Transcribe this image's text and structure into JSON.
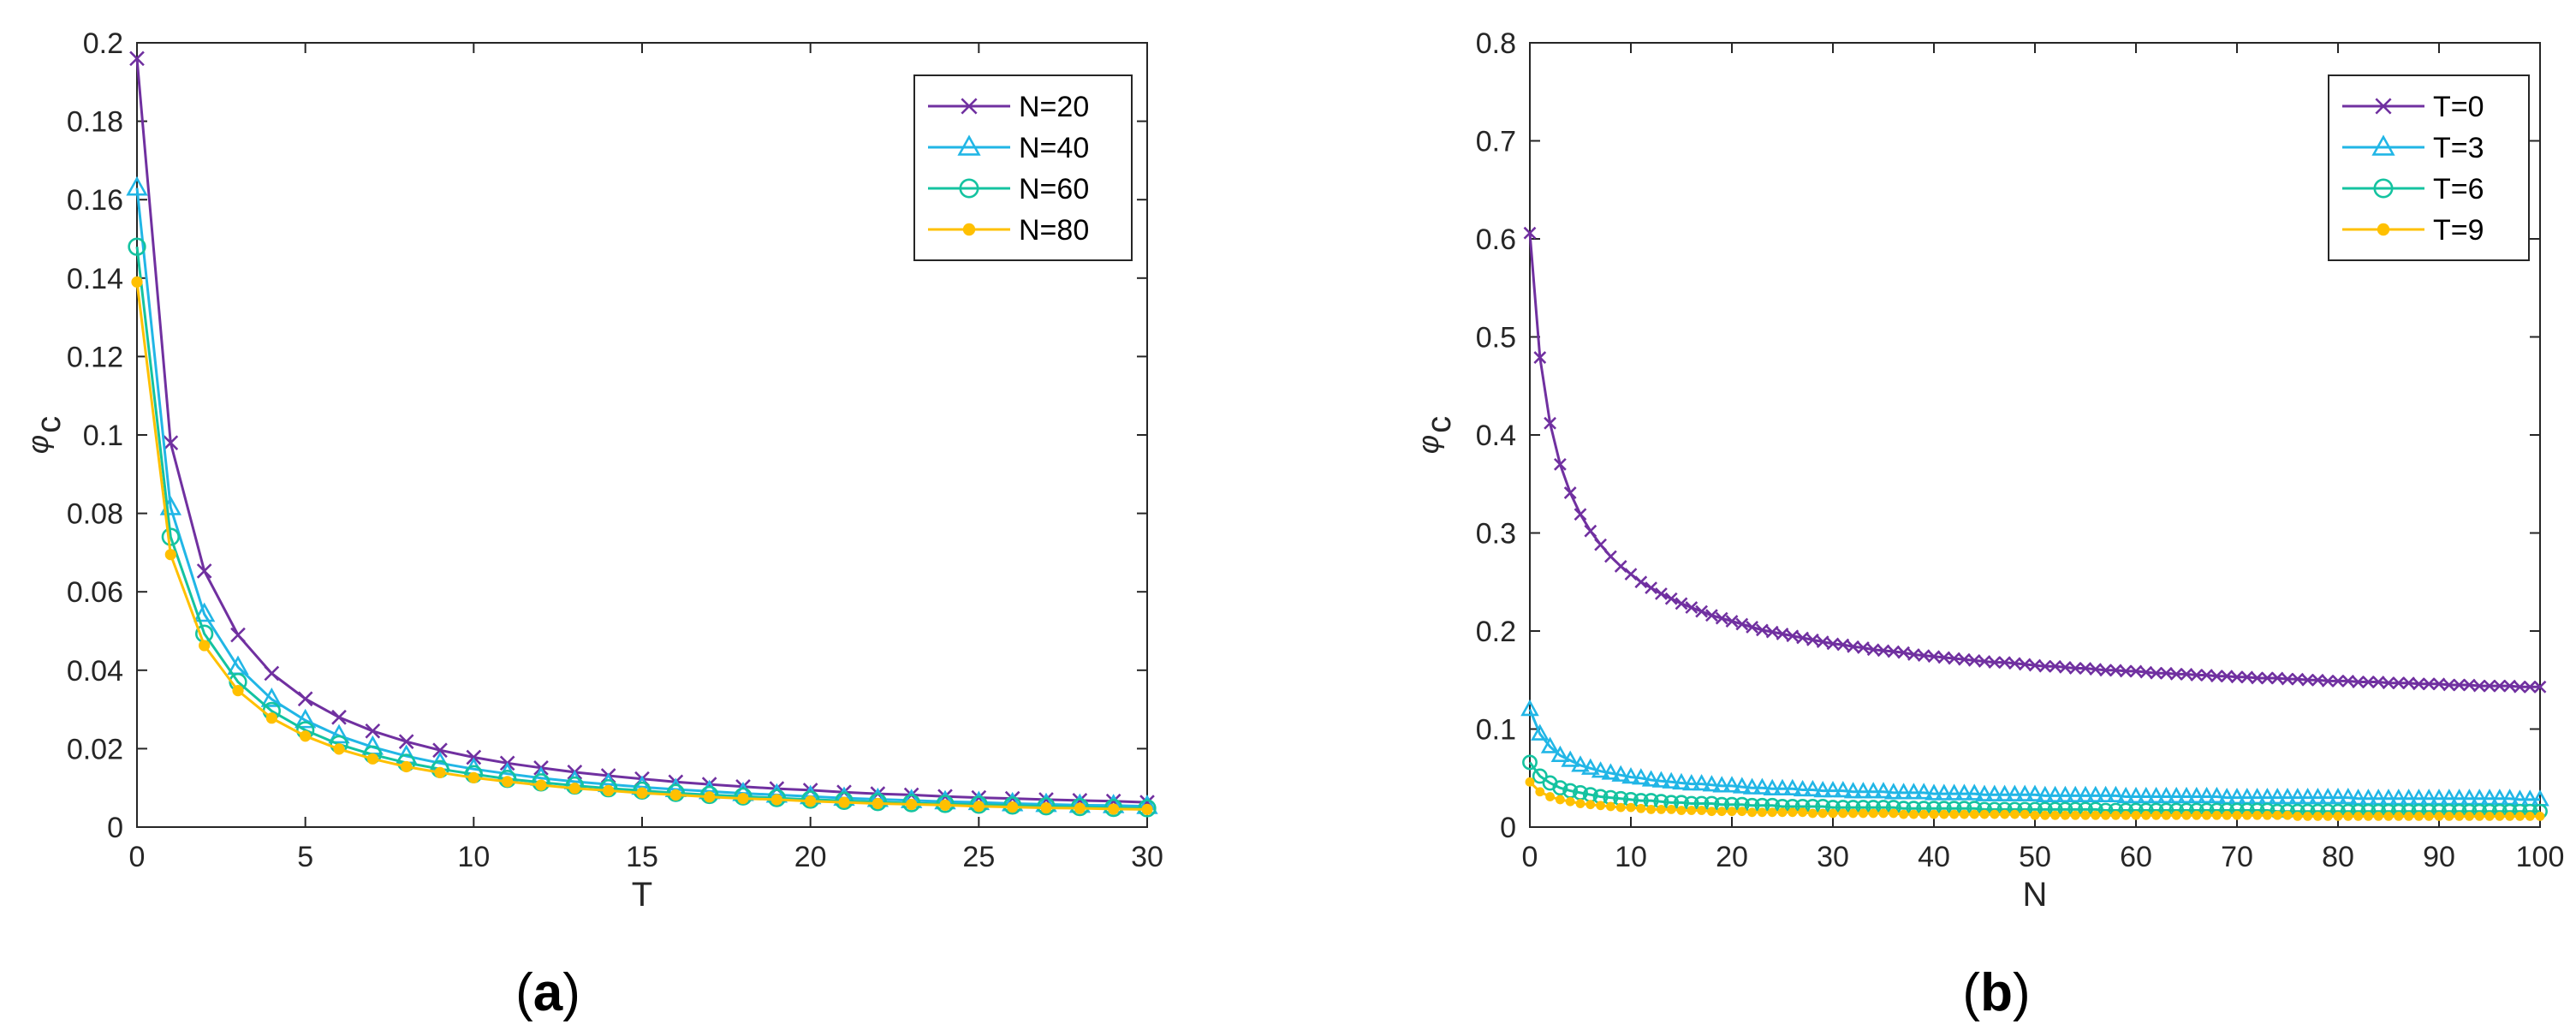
{
  "colors": {
    "purple": "#7030a0",
    "cyan": "#21b6e6",
    "teal": "#14c3a0",
    "yellow": "#ffc000",
    "axis": "#262626",
    "legend_border": "#262626"
  },
  "panels": [
    {
      "open": "(",
      "letter": "a",
      "close": ")"
    },
    {
      "open": "(",
      "letter": "b",
      "close": ")"
    }
  ],
  "chart_data": [
    {
      "type": "line",
      "xlabel": "T",
      "ylabel_symbol": "φ",
      "ylabel_subscript": "c",
      "xlim": [
        0,
        30
      ],
      "ylim": [
        0,
        0.2
      ],
      "xticks": [
        "0",
        "5",
        "10",
        "15",
        "20",
        "25",
        "30"
      ],
      "xtick_values": [
        0,
        5,
        10,
        15,
        20,
        25,
        30
      ],
      "yticks": [
        "0",
        "0.02",
        "0.04",
        "0.06",
        "0.08",
        "0.1",
        "0.12",
        "0.14",
        "0.16",
        "0.18",
        "0.2"
      ],
      "ytick_values": [
        0,
        0.02,
        0.04,
        0.06,
        0.08,
        0.1,
        0.12,
        0.14,
        0.16,
        0.18,
        0.2
      ],
      "grid": false,
      "legend_position": "top-right",
      "x": [
        0,
        1,
        2,
        3,
        4,
        5,
        6,
        7,
        8,
        9,
        10,
        11,
        12,
        13,
        14,
        15,
        16,
        17,
        18,
        19,
        20,
        21,
        22,
        23,
        24,
        25,
        26,
        27,
        28,
        29,
        30
      ],
      "series": [
        {
          "name": "N=20",
          "marker": "x",
          "color": "purple",
          "values": [
            0.196,
            0.098,
            0.0653,
            0.049,
            0.0392,
            0.0327,
            0.028,
            0.0245,
            0.0218,
            0.0196,
            0.0178,
            0.0163,
            0.0151,
            0.014,
            0.0131,
            0.0123,
            0.0115,
            0.0109,
            0.0103,
            0.0098,
            0.0094,
            0.0089,
            0.0085,
            0.0082,
            0.0078,
            0.0075,
            0.0073,
            0.007,
            0.0068,
            0.0066,
            0.0063
          ]
        },
        {
          "name": "N=40",
          "marker": "triangle",
          "color": "cyan",
          "values": [
            0.163,
            0.0815,
            0.0543,
            0.0408,
            0.0326,
            0.0272,
            0.0233,
            0.0204,
            0.0181,
            0.0163,
            0.0148,
            0.0136,
            0.0125,
            0.0116,
            0.0109,
            0.0102,
            0.0096,
            0.0091,
            0.0086,
            0.0082,
            0.0078,
            0.0074,
            0.0071,
            0.0068,
            0.0065,
            0.0063,
            0.006,
            0.0058,
            0.0056,
            0.0055,
            0.0053
          ]
        },
        {
          "name": "N=60",
          "marker": "circle",
          "color": "teal",
          "values": [
            0.148,
            0.074,
            0.0493,
            0.037,
            0.0296,
            0.0247,
            0.0211,
            0.0185,
            0.0164,
            0.0148,
            0.0135,
            0.0123,
            0.0114,
            0.0106,
            0.0099,
            0.0093,
            0.0087,
            0.0082,
            0.0078,
            0.0074,
            0.007,
            0.0067,
            0.0064,
            0.0061,
            0.0059,
            0.0057,
            0.0055,
            0.0053,
            0.0051,
            0.0049,
            0.0048
          ]
        },
        {
          "name": "N=80",
          "marker": "dot",
          "color": "yellow",
          "values": [
            0.139,
            0.0695,
            0.0463,
            0.0348,
            0.0278,
            0.0232,
            0.0199,
            0.0174,
            0.0154,
            0.0139,
            0.0126,
            0.0116,
            0.0107,
            0.0099,
            0.0093,
            0.0087,
            0.0082,
            0.0077,
            0.0073,
            0.007,
            0.0066,
            0.0063,
            0.006,
            0.0058,
            0.0056,
            0.0053,
            0.0051,
            0.0049,
            0.0048,
            0.0046,
            0.0045
          ]
        }
      ]
    },
    {
      "type": "line",
      "xlabel": "N",
      "ylabel_symbol": "φ",
      "ylabel_subscript": "c",
      "xlim": [
        0,
        100
      ],
      "ylim": [
        0,
        0.8
      ],
      "xticks": [
        "0",
        "10",
        "20",
        "30",
        "40",
        "50",
        "60",
        "70",
        "80",
        "90",
        "100"
      ],
      "xtick_values": [
        0,
        10,
        20,
        30,
        40,
        50,
        60,
        70,
        80,
        90,
        100
      ],
      "yticks": [
        "0",
        "0.1",
        "0.2",
        "0.3",
        "0.4",
        "0.5",
        "0.6",
        "0.7",
        "0.8"
      ],
      "ytick_values": [
        0,
        0.1,
        0.2,
        0.3,
        0.4,
        0.5,
        0.6,
        0.7,
        0.8
      ],
      "grid": false,
      "legend_position": "top-right",
      "x": [
        0,
        1,
        2,
        3,
        4,
        5,
        6,
        7,
        8,
        9,
        10,
        11,
        12,
        13,
        14,
        15,
        16,
        17,
        18,
        19,
        20,
        21,
        22,
        23,
        24,
        25,
        26,
        27,
        28,
        29,
        30,
        31,
        32,
        33,
        34,
        35,
        36,
        37,
        38,
        39,
        40,
        41,
        42,
        43,
        44,
        45,
        46,
        47,
        48,
        49,
        50,
        51,
        52,
        53,
        54,
        55,
        56,
        57,
        58,
        59,
        60,
        61,
        62,
        63,
        64,
        65,
        66,
        67,
        68,
        69,
        70,
        71,
        72,
        73,
        74,
        75,
        76,
        77,
        78,
        79,
        80,
        81,
        82,
        83,
        84,
        85,
        86,
        87,
        88,
        89,
        90,
        91,
        92,
        93,
        94,
        95,
        96,
        97,
        98,
        99,
        100
      ],
      "series": [
        {
          "name": "T=0",
          "marker": "x",
          "color": "purple",
          "values": [
            0.606,
            0.479,
            0.412,
            0.37,
            0.341,
            0.319,
            0.302,
            0.288,
            0.276,
            0.266,
            0.258,
            0.25,
            0.244,
            0.238,
            0.233,
            0.228,
            0.224,
            0.22,
            0.216,
            0.213,
            0.21,
            0.207,
            0.204,
            0.201,
            0.199,
            0.197,
            0.195,
            0.193,
            0.191,
            0.189,
            0.187,
            0.186,
            0.184,
            0.183,
            0.181,
            0.18,
            0.179,
            0.178,
            0.176,
            0.175,
            0.174,
            0.173,
            0.172,
            0.171,
            0.17,
            0.169,
            0.168,
            0.168,
            0.167,
            0.166,
            0.165,
            0.164,
            0.164,
            0.163,
            0.162,
            0.162,
            0.161,
            0.16,
            0.16,
            0.159,
            0.159,
            0.158,
            0.157,
            0.157,
            0.156,
            0.156,
            0.155,
            0.155,
            0.154,
            0.154,
            0.153,
            0.153,
            0.152,
            0.152,
            0.152,
            0.151,
            0.151,
            0.15,
            0.15,
            0.149,
            0.149,
            0.149,
            0.148,
            0.148,
            0.148,
            0.147,
            0.147,
            0.147,
            0.146,
            0.146,
            0.146,
            0.145,
            0.145,
            0.145,
            0.144,
            0.144,
            0.144,
            0.144,
            0.143,
            0.143,
            0.143
          ]
        },
        {
          "name": "T=3",
          "marker": "triangle",
          "color": "cyan",
          "values": [
            0.12,
            0.095,
            0.082,
            0.073,
            0.068,
            0.063,
            0.06,
            0.057,
            0.055,
            0.053,
            0.051,
            0.05,
            0.048,
            0.047,
            0.046,
            0.045,
            0.044,
            0.044,
            0.043,
            0.042,
            0.042,
            0.041,
            0.04,
            0.04,
            0.039,
            0.039,
            0.039,
            0.038,
            0.038,
            0.037,
            0.037,
            0.037,
            0.036,
            0.036,
            0.036,
            0.036,
            0.035,
            0.035,
            0.035,
            0.035,
            0.034,
            0.034,
            0.034,
            0.034,
            0.034,
            0.033,
            0.033,
            0.033,
            0.033,
            0.033,
            0.033,
            0.032,
            0.032,
            0.032,
            0.032,
            0.032,
            0.032,
            0.032,
            0.032,
            0.031,
            0.031,
            0.031,
            0.031,
            0.031,
            0.031,
            0.031,
            0.031,
            0.031,
            0.031,
            0.03,
            0.03,
            0.03,
            0.03,
            0.03,
            0.03,
            0.03,
            0.03,
            0.03,
            0.03,
            0.03,
            0.03,
            0.03,
            0.029,
            0.029,
            0.029,
            0.029,
            0.029,
            0.029,
            0.029,
            0.029,
            0.029,
            0.029,
            0.029,
            0.029,
            0.029,
            0.029,
            0.029,
            0.029,
            0.028,
            0.028,
            0.028
          ]
        },
        {
          "name": "T=6",
          "marker": "circle",
          "color": "teal",
          "values": [
            0.066,
            0.052,
            0.045,
            0.04,
            0.037,
            0.035,
            0.033,
            0.031,
            0.03,
            0.029,
            0.028,
            0.027,
            0.027,
            0.026,
            0.025,
            0.025,
            0.024,
            0.024,
            0.024,
            0.023,
            0.023,
            0.023,
            0.022,
            0.022,
            0.022,
            0.021,
            0.021,
            0.021,
            0.021,
            0.021,
            0.02,
            0.02,
            0.02,
            0.02,
            0.02,
            0.02,
            0.02,
            0.019,
            0.019,
            0.019,
            0.019,
            0.019,
            0.019,
            0.019,
            0.019,
            0.018,
            0.018,
            0.018,
            0.018,
            0.018,
            0.018,
            0.018,
            0.018,
            0.018,
            0.018,
            0.018,
            0.018,
            0.017,
            0.017,
            0.017,
            0.017,
            0.017,
            0.017,
            0.017,
            0.017,
            0.017,
            0.017,
            0.017,
            0.017,
            0.017,
            0.017,
            0.017,
            0.017,
            0.017,
            0.016,
            0.016,
            0.016,
            0.016,
            0.016,
            0.016,
            0.016,
            0.016,
            0.016,
            0.016,
            0.016,
            0.016,
            0.016,
            0.016,
            0.016,
            0.016,
            0.016,
            0.016,
            0.016,
            0.016,
            0.016,
            0.016,
            0.016,
            0.016,
            0.016,
            0.016,
            0.016
          ]
        },
        {
          "name": "T=9",
          "marker": "dot",
          "color": "yellow",
          "values": [
            0.046,
            0.036,
            0.031,
            0.028,
            0.026,
            0.024,
            0.023,
            0.022,
            0.021,
            0.02,
            0.02,
            0.019,
            0.018,
            0.018,
            0.018,
            0.017,
            0.017,
            0.017,
            0.016,
            0.016,
            0.016,
            0.016,
            0.015,
            0.015,
            0.015,
            0.015,
            0.015,
            0.015,
            0.014,
            0.014,
            0.014,
            0.014,
            0.014,
            0.014,
            0.014,
            0.014,
            0.014,
            0.013,
            0.013,
            0.013,
            0.013,
            0.013,
            0.013,
            0.013,
            0.013,
            0.013,
            0.013,
            0.013,
            0.013,
            0.013,
            0.012,
            0.012,
            0.012,
            0.012,
            0.012,
            0.012,
            0.012,
            0.012,
            0.012,
            0.012,
            0.012,
            0.012,
            0.012,
            0.012,
            0.012,
            0.012,
            0.012,
            0.012,
            0.012,
            0.012,
            0.012,
            0.012,
            0.012,
            0.012,
            0.012,
            0.012,
            0.011,
            0.011,
            0.011,
            0.011,
            0.011,
            0.011,
            0.011,
            0.011,
            0.011,
            0.011,
            0.011,
            0.011,
            0.011,
            0.011,
            0.011,
            0.011,
            0.011,
            0.011,
            0.011,
            0.011,
            0.011,
            0.011,
            0.011,
            0.011,
            0.011
          ]
        }
      ]
    }
  ]
}
